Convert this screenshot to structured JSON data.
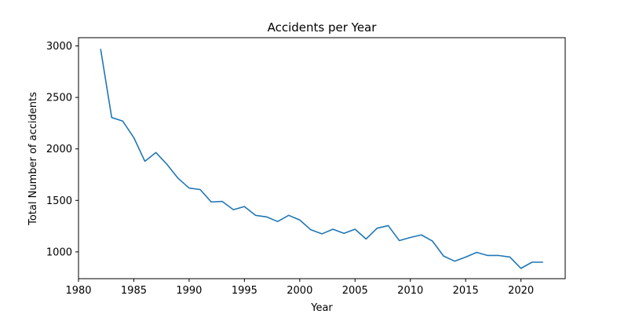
{
  "chart_data": {
    "type": "line",
    "title": "Accidents per Year",
    "xlabel": "Year",
    "ylabel": "Total Number of accidents",
    "xlim": [
      1980,
      2024
    ],
    "ylim": [
      740,
      3080
    ],
    "xticks": [
      1980,
      1985,
      1990,
      1995,
      2000,
      2005,
      2010,
      2015,
      2020
    ],
    "yticks": [
      1000,
      1500,
      2000,
      2500,
      3000
    ],
    "grid": false,
    "line_color": "#1f77b4",
    "series": [
      {
        "x": [
          1982,
          1983,
          1984,
          1985,
          1986,
          1987,
          1988,
          1989,
          1990,
          1991,
          1992,
          1993,
          1994,
          1995,
          1996,
          1997,
          1998,
          1999,
          2000,
          2001,
          2002,
          2003,
          2004,
          2005,
          2006,
          2007,
          2008,
          2009,
          2010,
          2011,
          2012,
          2013,
          2014,
          2015,
          2016,
          2017,
          2018,
          2019,
          2020,
          2021,
          2022
        ],
        "y": [
          2970,
          2305,
          2270,
          2110,
          1880,
          1965,
          1850,
          1715,
          1620,
          1605,
          1485,
          1490,
          1410,
          1440,
          1355,
          1340,
          1295,
          1355,
          1310,
          1215,
          1175,
          1220,
          1180,
          1220,
          1125,
          1230,
          1255,
          1110,
          1140,
          1165,
          1105,
          960,
          910,
          950,
          995,
          965,
          965,
          950,
          840,
          900,
          900
        ]
      }
    ]
  }
}
